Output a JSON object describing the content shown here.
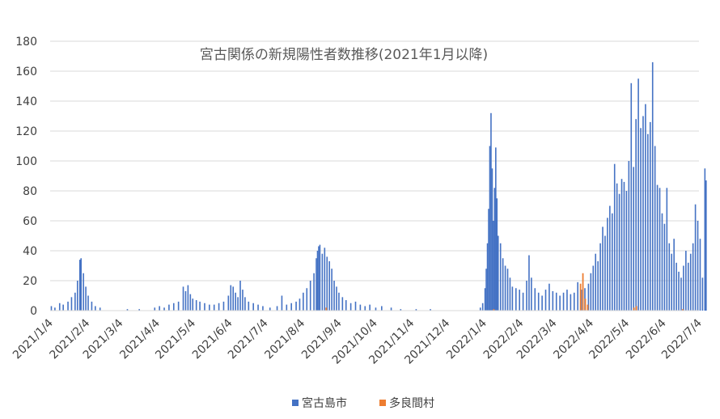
{
  "chart_data": {
    "type": "bar",
    "title": "宮古関係の新規陽性者数推移(2021年1月以降)",
    "ylim": [
      0,
      180
    ],
    "yticks": [
      0,
      20,
      40,
      60,
      80,
      100,
      120,
      140,
      160,
      180
    ],
    "xticks": [
      "2021/1/4",
      "2021/2/4",
      "2021/3/4",
      "2021/4/4",
      "2021/5/4",
      "2021/6/4",
      "2021/7/4",
      "2021/8/4",
      "2021/9/4",
      "2021/10/4",
      "2021/11/4",
      "2021/12/4",
      "2022/1/4",
      "2022/2/4",
      "2022/3/4",
      "2022/4/4",
      "2022/5/4",
      "2022/6/4",
      "2022/7/4"
    ],
    "grid": true,
    "legend_position": "bottom",
    "series": [
      {
        "name": "宮古島市",
        "color": "#4472C4",
        "points": [
          [
            "2021/1/5",
            3
          ],
          [
            "2021/1/8",
            2
          ],
          [
            "2021/1/12",
            5
          ],
          [
            "2021/1/15",
            4
          ],
          [
            "2021/1/19",
            6
          ],
          [
            "2021/1/22",
            9
          ],
          [
            "2021/1/25",
            12
          ],
          [
            "2021/1/27",
            20
          ],
          [
            "2021/1/29",
            34
          ],
          [
            "2021/1/30",
            35
          ],
          [
            "2021/2/1",
            25
          ],
          [
            "2021/2/3",
            16
          ],
          [
            "2021/2/5",
            10
          ],
          [
            "2021/2/8",
            6
          ],
          [
            "2021/2/11",
            3
          ],
          [
            "2021/2/15",
            2
          ],
          [
            "2021/3/10",
            1
          ],
          [
            "2021/3/20",
            1
          ],
          [
            "2021/4/2",
            2
          ],
          [
            "2021/4/6",
            3
          ],
          [
            "2021/4/10",
            2
          ],
          [
            "2021/4/14",
            4
          ],
          [
            "2021/4/18",
            5
          ],
          [
            "2021/4/22",
            6
          ],
          [
            "2021/4/26",
            16
          ],
          [
            "2021/4/28",
            13
          ],
          [
            "2021/4/30",
            17
          ],
          [
            "2021/5/2",
            11
          ],
          [
            "2021/5/4",
            8
          ],
          [
            "2021/5/7",
            7
          ],
          [
            "2021/5/10",
            6
          ],
          [
            "2021/5/14",
            5
          ],
          [
            "2021/5/18",
            4
          ],
          [
            "2021/5/22",
            4
          ],
          [
            "2021/5/26",
            5
          ],
          [
            "2021/5/30",
            6
          ],
          [
            "2021/6/3",
            10
          ],
          [
            "2021/6/5",
            17
          ],
          [
            "2021/6/7",
            16
          ],
          [
            "2021/6/9",
            12
          ],
          [
            "2021/6/11",
            9
          ],
          [
            "2021/6/13",
            20
          ],
          [
            "2021/6/15",
            14
          ],
          [
            "2021/6/17",
            9
          ],
          [
            "2021/6/20",
            6
          ],
          [
            "2021/6/24",
            5
          ],
          [
            "2021/6/28",
            4
          ],
          [
            "2021/7/2",
            3
          ],
          [
            "2021/7/8",
            2
          ],
          [
            "2021/7/14",
            3
          ],
          [
            "2021/7/18",
            10
          ],
          [
            "2021/7/22",
            4
          ],
          [
            "2021/7/26",
            5
          ],
          [
            "2021/7/30",
            6
          ],
          [
            "2021/8/2",
            8
          ],
          [
            "2021/8/5",
            12
          ],
          [
            "2021/8/8",
            15
          ],
          [
            "2021/8/11",
            20
          ],
          [
            "2021/8/14",
            25
          ],
          [
            "2021/8/16",
            35
          ],
          [
            "2021/8/17",
            40
          ],
          [
            "2021/8/18",
            43
          ],
          [
            "2021/8/19",
            44
          ],
          [
            "2021/8/21",
            38
          ],
          [
            "2021/8/23",
            42
          ],
          [
            "2021/8/25",
            36
          ],
          [
            "2021/8/27",
            33
          ],
          [
            "2021/8/29",
            28
          ],
          [
            "2021/8/31",
            20
          ],
          [
            "2021/9/2",
            16
          ],
          [
            "2021/9/4",
            12
          ],
          [
            "2021/9/7",
            9
          ],
          [
            "2021/9/10",
            7
          ],
          [
            "2021/9/14",
            5
          ],
          [
            "2021/9/18",
            6
          ],
          [
            "2021/9/22",
            4
          ],
          [
            "2021/9/26",
            3
          ],
          [
            "2021/9/30",
            4
          ],
          [
            "2021/10/5",
            2
          ],
          [
            "2021/10/10",
            3
          ],
          [
            "2021/10/18",
            2
          ],
          [
            "2021/10/26",
            1
          ],
          [
            "2021/11/8",
            1
          ],
          [
            "2021/11/20",
            1
          ],
          [
            "2022/1/1",
            2
          ],
          [
            "2022/1/3",
            5
          ],
          [
            "2022/1/5",
            15
          ],
          [
            "2022/1/6",
            28
          ],
          [
            "2022/1/7",
            45
          ],
          [
            "2022/1/8",
            68
          ],
          [
            "2022/1/9",
            110
          ],
          [
            "2022/1/10",
            132
          ],
          [
            "2022/1/11",
            95
          ],
          [
            "2022/1/12",
            60
          ],
          [
            "2022/1/13",
            82
          ],
          [
            "2022/1/14",
            109
          ],
          [
            "2022/1/15",
            75
          ],
          [
            "2022/1/16",
            50
          ],
          [
            "2022/1/18",
            45
          ],
          [
            "2022/1/20",
            35
          ],
          [
            "2022/1/22",
            30
          ],
          [
            "2022/1/24",
            28
          ],
          [
            "2022/1/26",
            22
          ],
          [
            "2022/1/28",
            16
          ],
          [
            "2022/1/31",
            15
          ],
          [
            "2022/2/3",
            14
          ],
          [
            "2022/2/6",
            12
          ],
          [
            "2022/2/9",
            20
          ],
          [
            "2022/2/11",
            37
          ],
          [
            "2022/2/13",
            22
          ],
          [
            "2022/2/16",
            15
          ],
          [
            "2022/2/19",
            12
          ],
          [
            "2022/2/22",
            10
          ],
          [
            "2022/2/25",
            14
          ],
          [
            "2022/2/28",
            18
          ],
          [
            "2022/3/3",
            13
          ],
          [
            "2022/3/6",
            12
          ],
          [
            "2022/3/9",
            10
          ],
          [
            "2022/3/12",
            12
          ],
          [
            "2022/3/15",
            14
          ],
          [
            "2022/3/18",
            11
          ],
          [
            "2022/3/21",
            12
          ],
          [
            "2022/3/24",
            19
          ],
          [
            "2022/3/27",
            14
          ],
          [
            "2022/3/30",
            15
          ],
          [
            "2022/4/2",
            18
          ],
          [
            "2022/4/4",
            25
          ],
          [
            "2022/4/6",
            30
          ],
          [
            "2022/4/8",
            38
          ],
          [
            "2022/4/10",
            33
          ],
          [
            "2022/4/12",
            45
          ],
          [
            "2022/4/14",
            56
          ],
          [
            "2022/4/16",
            50
          ],
          [
            "2022/4/18",
            62
          ],
          [
            "2022/4/20",
            70
          ],
          [
            "2022/4/22",
            65
          ],
          [
            "2022/4/24",
            98
          ],
          [
            "2022/4/26",
            85
          ],
          [
            "2022/4/28",
            78
          ],
          [
            "2022/4/30",
            88
          ],
          [
            "2022/5/2",
            86
          ],
          [
            "2022/5/4",
            80
          ],
          [
            "2022/5/6",
            100
          ],
          [
            "2022/5/8",
            152
          ],
          [
            "2022/5/10",
            96
          ],
          [
            "2022/5/12",
            128
          ],
          [
            "2022/5/14",
            155
          ],
          [
            "2022/5/16",
            122
          ],
          [
            "2022/5/18",
            130
          ],
          [
            "2022/5/20",
            138
          ],
          [
            "2022/5/22",
            118
          ],
          [
            "2022/5/24",
            126
          ],
          [
            "2022/5/26",
            166
          ],
          [
            "2022/5/28",
            110
          ],
          [
            "2022/5/30",
            84
          ],
          [
            "2022/6/1",
            82
          ],
          [
            "2022/6/3",
            65
          ],
          [
            "2022/6/5",
            58
          ],
          [
            "2022/6/7",
            82
          ],
          [
            "2022/6/9",
            45
          ],
          [
            "2022/6/11",
            38
          ],
          [
            "2022/6/13",
            48
          ],
          [
            "2022/6/15",
            32
          ],
          [
            "2022/6/17",
            26
          ],
          [
            "2022/6/19",
            22
          ],
          [
            "2022/6/21",
            30
          ],
          [
            "2022/6/23",
            40
          ],
          [
            "2022/6/25",
            32
          ],
          [
            "2022/6/27",
            38
          ],
          [
            "2022/6/29",
            45
          ],
          [
            "2022/7/1",
            71
          ],
          [
            "2022/7/3",
            60
          ],
          [
            "2022/7/5",
            48
          ],
          [
            "2022/7/7",
            22
          ],
          [
            "2022/7/9",
            95
          ],
          [
            "2022/7/10",
            87
          ]
        ]
      },
      {
        "name": "多良間村",
        "color": "#ED7D31",
        "points": [
          [
            "2021/8/24",
            2
          ],
          [
            "2022/1/12",
            1
          ],
          [
            "2022/3/26",
            18
          ],
          [
            "2022/3/28",
            25
          ],
          [
            "2022/3/30",
            8
          ],
          [
            "2022/4/1",
            4
          ],
          [
            "2022/5/10",
            2
          ],
          [
            "2022/5/12",
            3
          ],
          [
            "2022/6/20",
            1
          ]
        ]
      }
    ]
  }
}
